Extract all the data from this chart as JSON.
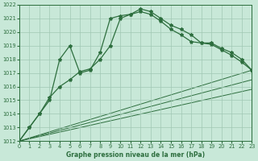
{
  "bg_color": "#c8e8d8",
  "grid_color": "#a0c8b4",
  "line_color": "#2d6e3e",
  "xlabel": "Graphe pression niveau de la mer (hPa)",
  "xlim": [
    0,
    23
  ],
  "ylim": [
    1012,
    1022
  ],
  "ytick_vals": [
    1012,
    1013,
    1014,
    1015,
    1016,
    1017,
    1018,
    1019,
    1020,
    1021,
    1022
  ],
  "xtick_vals": [
    0,
    1,
    2,
    3,
    4,
    5,
    6,
    7,
    8,
    9,
    10,
    11,
    12,
    13,
    14,
    15,
    16,
    17,
    18,
    19,
    20,
    21,
    22,
    23
  ],
  "curve1_x": [
    0,
    1,
    2,
    3,
    4,
    5,
    6,
    7,
    8,
    9,
    10,
    11,
    12,
    13,
    14,
    15,
    16,
    17,
    18,
    19,
    20,
    21,
    22,
    23
  ],
  "curve1_y": [
    1012.0,
    1013.0,
    1014.0,
    1015.0,
    1018.0,
    1019.0,
    1017.0,
    1017.2,
    1018.5,
    1021.0,
    1021.2,
    1021.3,
    1021.7,
    1021.5,
    1021.0,
    1020.5,
    1020.2,
    1019.8,
    1019.2,
    1019.2,
    1018.8,
    1018.5,
    1018.0,
    1017.2
  ],
  "curve2_x": [
    0,
    1,
    2,
    3,
    4,
    5,
    6,
    7,
    8,
    9,
    10,
    11,
    12,
    13,
    14,
    15,
    16,
    17,
    18,
    19,
    20,
    21,
    22,
    23
  ],
  "curve2_y": [
    1012.0,
    1013.0,
    1014.0,
    1015.2,
    1016.0,
    1016.5,
    1017.1,
    1017.3,
    1018.0,
    1019.0,
    1021.0,
    1021.3,
    1021.5,
    1021.3,
    1020.8,
    1020.2,
    1019.8,
    1019.3,
    1019.2,
    1019.1,
    1018.7,
    1018.3,
    1017.8,
    1017.2
  ],
  "straight_lines": [
    {
      "x": [
        0,
        23
      ],
      "y": [
        1012.0,
        1017.2
      ]
    },
    {
      "x": [
        0,
        23
      ],
      "y": [
        1012.0,
        1016.5
      ]
    },
    {
      "x": [
        0,
        23
      ],
      "y": [
        1012.0,
        1015.8
      ]
    }
  ]
}
